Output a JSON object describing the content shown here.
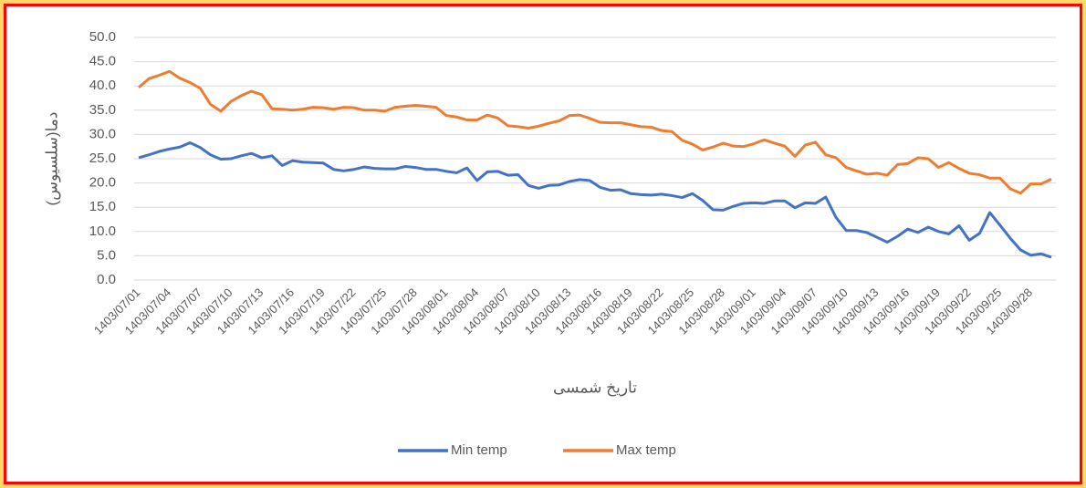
{
  "chart_data": {
    "type": "line",
    "x_label": "تاریخ شمسی",
    "y_label": "دما(سلسیوس)",
    "categories": [
      "1403/07/01",
      null,
      null,
      "1403/07/04",
      null,
      null,
      "1403/07/07",
      null,
      null,
      "1403/07/10",
      null,
      null,
      "1403/07/13",
      null,
      null,
      "1403/07/16",
      null,
      null,
      "1403/07/19",
      null,
      null,
      "1403/07/22",
      null,
      null,
      "1403/07/25",
      null,
      null,
      "1403/07/28",
      null,
      null,
      "1403/08/01",
      null,
      null,
      "1403/08/04",
      null,
      null,
      "1403/08/07",
      null,
      null,
      "1403/08/10",
      null,
      null,
      "1403/08/13",
      null,
      null,
      "1403/08/16",
      null,
      null,
      "1403/08/19",
      null,
      null,
      "1403/08/22",
      null,
      null,
      "1403/08/25",
      null,
      null,
      "1403/08/28",
      null,
      null,
      "1403/09/01",
      null,
      null,
      "1403/09/04",
      null,
      null,
      "1403/09/07",
      null,
      null,
      "1403/09/10",
      null,
      null,
      "1403/09/13",
      null,
      null,
      "1403/09/16",
      null,
      null,
      "1403/09/19",
      null,
      null,
      "1403/09/22",
      null,
      null,
      "1403/09/25",
      null,
      null,
      "1403/09/28",
      null,
      null
    ],
    "series": [
      {
        "name": "Min temp",
        "color": "#4472c4",
        "values": [
          25.2,
          25.8,
          26.5,
          27.0,
          27.4,
          28.3,
          27.3,
          25.8,
          24.9,
          25.0,
          25.6,
          26.1,
          25.2,
          25.6,
          23.6,
          24.6,
          24.3,
          24.2,
          24.1,
          22.8,
          22.5,
          22.8,
          23.3,
          23.0,
          22.9,
          22.9,
          23.4,
          23.2,
          22.8,
          22.8,
          22.4,
          22.1,
          23.1,
          20.5,
          22.3,
          22.4,
          21.6,
          21.7,
          19.5,
          18.9,
          19.5,
          19.6,
          20.3,
          20.7,
          20.5,
          19.1,
          18.5,
          18.6,
          17.8,
          17.6,
          17.5,
          17.7,
          17.4,
          17.0,
          17.8,
          16.4,
          14.5,
          14.4,
          15.2,
          15.8,
          15.9,
          15.8,
          16.3,
          16.3,
          14.9,
          15.9,
          15.8,
          17.1,
          12.9,
          10.2,
          10.2,
          9.8,
          8.8,
          7.8,
          9.0,
          10.5,
          9.8,
          10.9,
          10.0,
          9.5,
          11.2,
          8.2,
          9.6,
          13.9,
          11.3,
          8.6,
          6.2,
          5.1,
          5.4,
          4.7
        ]
      },
      {
        "name": "Max temp",
        "color": "#ed7d31",
        "values": [
          39.7,
          41.5,
          42.2,
          43.0,
          41.6,
          40.7,
          39.5,
          36.2,
          34.8,
          36.8,
          38.0,
          38.9,
          38.2,
          35.3,
          35.2,
          35.0,
          35.2,
          35.6,
          35.5,
          35.2,
          35.6,
          35.5,
          35.0,
          35.0,
          34.8,
          35.6,
          35.8,
          36.0,
          35.8,
          35.6,
          33.9,
          33.6,
          33.0,
          33.0,
          34.0,
          33.4,
          31.8,
          31.6,
          31.3,
          31.7,
          32.3,
          32.8,
          33.9,
          34.0,
          33.3,
          32.5,
          32.4,
          32.4,
          32.0,
          31.6,
          31.5,
          30.8,
          30.6,
          28.8,
          28.0,
          26.8,
          27.4,
          28.2,
          27.6,
          27.5,
          28.1,
          28.9,
          28.2,
          27.6,
          25.5,
          27.8,
          28.4,
          25.8,
          25.2,
          23.2,
          22.5,
          21.8,
          22.0,
          21.6,
          23.8,
          24.0,
          25.2,
          25.0,
          23.2,
          24.2,
          23.0,
          22.0,
          21.7,
          21.0,
          21.0,
          18.8,
          17.9,
          19.8,
          19.8,
          20.8
        ]
      }
    ],
    "ylim": [
      0,
      50
    ],
    "yticks": [
      {
        "value": 0,
        "label": "0.0"
      },
      {
        "value": 5,
        "label": "5.0"
      },
      {
        "value": 10,
        "label": "10.0"
      },
      {
        "value": 15,
        "label": "15.0"
      },
      {
        "value": 20,
        "label": "20.0"
      },
      {
        "value": 25,
        "label": "25.0"
      },
      {
        "value": 30,
        "label": "30.0"
      },
      {
        "value": 35,
        "label": "35.0"
      },
      {
        "value": 40,
        "label": "40.0"
      },
      {
        "value": 45,
        "label": "45.0"
      },
      {
        "value": 50,
        "label": "50.0"
      }
    ],
    "grid": true,
    "legend": "bottom"
  }
}
